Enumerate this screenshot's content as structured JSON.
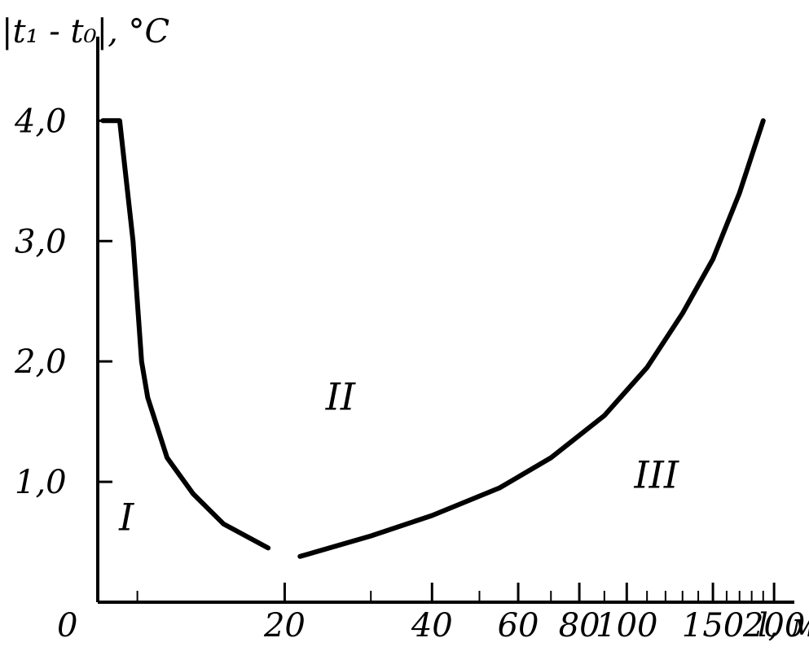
{
  "chart_data": {
    "type": "line",
    "y_title": "|t₁ - t₀|, °C",
    "x_title": "l, м",
    "origin_label": "0",
    "x_ticks": [
      {
        "value": 20,
        "label": "20"
      },
      {
        "value": 40,
        "label": "40"
      },
      {
        "value": 60,
        "label": "60"
      },
      {
        "value": 80,
        "label": "80"
      },
      {
        "value": 100,
        "label": "100"
      },
      {
        "value": 150,
        "label": "150"
      },
      {
        "value": 200,
        "label": "200"
      }
    ],
    "x_minor_ticks": [
      10,
      30,
      50,
      70,
      90,
      110,
      120,
      130,
      140,
      160,
      170,
      180,
      190
    ],
    "y_ticks": [
      {
        "value": 1.0,
        "label": "1,0"
      },
      {
        "value": 2.0,
        "label": "2,0"
      },
      {
        "value": 3.0,
        "label": "3,0"
      },
      {
        "value": 4.0,
        "label": "4,0"
      }
    ],
    "xlim": [
      8.3,
      220
    ],
    "ylim": [
      0,
      4.8
    ],
    "x_scale": "log",
    "series": [
      {
        "points": [
          [
            8.5,
            4.0
          ],
          [
            9.2,
            4.0
          ],
          [
            9.8,
            3.0
          ],
          [
            10.2,
            2.0
          ],
          [
            10.5,
            1.7
          ],
          [
            11.5,
            1.2
          ],
          [
            13,
            0.9
          ],
          [
            15,
            0.65
          ],
          [
            18.5,
            0.45
          ]
        ]
      },
      {
        "points": [
          [
            21.5,
            0.38
          ],
          [
            30,
            0.55
          ],
          [
            40,
            0.72
          ],
          [
            55,
            0.95
          ],
          [
            70,
            1.2
          ],
          [
            90,
            1.55
          ],
          [
            110,
            1.95
          ],
          [
            130,
            2.4
          ],
          [
            150,
            2.85
          ],
          [
            170,
            3.4
          ],
          [
            190,
            4.0
          ]
        ]
      }
    ],
    "regions": [
      {
        "label": "I",
        "x": 9.5,
        "y": 0.6
      },
      {
        "label": "II",
        "x": 26,
        "y": 1.6
      },
      {
        "label": "III",
        "x": 115,
        "y": 0.95
      }
    ]
  }
}
